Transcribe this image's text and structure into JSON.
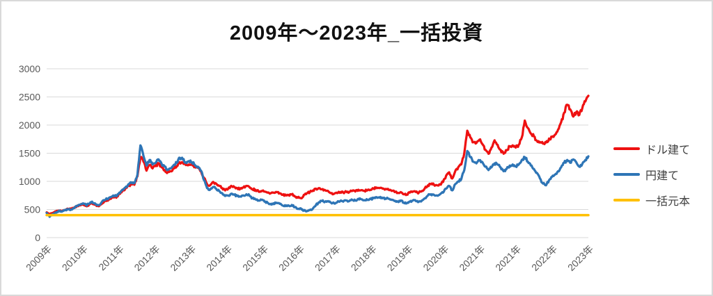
{
  "chart_data": {
    "type": "line",
    "title": "2009年～2023年_一括投資",
    "x_unit": "month",
    "x_tick_labels": [
      "2009年",
      "2010年",
      "2011年",
      "2012年",
      "2013年",
      "2014年",
      "2015年",
      "2016年",
      "2017年",
      "2018年",
      "2019年",
      "2020年",
      "2021年",
      "2021年",
      "2022年",
      "2023年"
    ],
    "y_tick_labels": [
      "0",
      "500",
      "1000",
      "1500",
      "2000",
      "2500",
      "3000"
    ],
    "ylim": [
      0,
      3000
    ],
    "y_step": 500,
    "grid": "horizontal",
    "legend_position": "right",
    "colors": {
      "gridline": "#D9D9D9",
      "axis_text": "#595959",
      "legend_text": "#404040",
      "border": "#D9D9D9"
    },
    "series": [
      {
        "name": "ドル建て",
        "color": "#EE1111",
        "values": [
          450,
          415,
          435,
          460,
          480,
          465,
          490,
          515,
          505,
          530,
          555,
          575,
          595,
          565,
          580,
          615,
          585,
          560,
          590,
          640,
          665,
          695,
          720,
          710,
          780,
          830,
          870,
          920,
          950,
          940,
          1090,
          1430,
          1350,
          1190,
          1290,
          1230,
          1270,
          1320,
          1250,
          1200,
          1160,
          1180,
          1230,
          1270,
          1340,
          1330,
          1290,
          1300,
          1310,
          1260,
          1240,
          1180,
          1060,
          950,
          930,
          990,
          960,
          920,
          880,
          840,
          870,
          920,
          900,
          880,
          870,
          890,
          920,
          900,
          860,
          850,
          820,
          830,
          820,
          800,
          790,
          800,
          810,
          790,
          760,
          750,
          760,
          770,
          730,
          710,
          700,
          760,
          790,
          810,
          840,
          870,
          880,
          860,
          845,
          830,
          790,
          780,
          790,
          810,
          800,
          820,
          810,
          830,
          820,
          850,
          845,
          830,
          840,
          850,
          870,
          890,
          880,
          870,
          865,
          850,
          830,
          810,
          795,
          810,
          770,
          765,
          800,
          820,
          810,
          800,
          830,
          880,
          930,
          950,
          940,
          930,
          950,
          990,
          1100,
          1160,
          1050,
          1180,
          1250,
          1300,
          1500,
          1900,
          1780,
          1700,
          1680,
          1740,
          1660,
          1560,
          1490,
          1600,
          1730,
          1650,
          1560,
          1490,
          1550,
          1620,
          1640,
          1600,
          1650,
          1780,
          2080,
          1950,
          1850,
          1800,
          1720,
          1700,
          1670,
          1690,
          1760,
          1790,
          1830,
          1920,
          2050,
          2220,
          2360,
          2280,
          2150,
          2230,
          2180,
          2300,
          2420,
          2520
        ]
      },
      {
        "name": "円建て",
        "color": "#2E75B6",
        "values": [
          440,
          370,
          420,
          450,
          475,
          460,
          485,
          500,
          495,
          525,
          560,
          585,
          610,
          580,
          600,
          640,
          610,
          580,
          615,
          665,
          690,
          720,
          750,
          735,
          800,
          850,
          890,
          950,
          980,
          970,
          1120,
          1640,
          1450,
          1280,
          1380,
          1300,
          1330,
          1390,
          1310,
          1260,
          1210,
          1230,
          1290,
          1330,
          1420,
          1390,
          1340,
          1360,
          1340,
          1290,
          1260,
          1190,
          1020,
          880,
          850,
          900,
          870,
          830,
          790,
          740,
          750,
          780,
          760,
          740,
          730,
          750,
          770,
          750,
          700,
          680,
          660,
          670,
          640,
          620,
          600,
          610,
          620,
          600,
          570,
          560,
          570,
          580,
          540,
          510,
          520,
          480,
          470,
          490,
          520,
          580,
          630,
          650,
          640,
          650,
          620,
          610,
          630,
          650,
          640,
          660,
          650,
          670,
          660,
          690,
          680,
          665,
          670,
          685,
          700,
          720,
          710,
          700,
          695,
          690,
          670,
          650,
          640,
          660,
          620,
          610,
          640,
          660,
          650,
          640,
          660,
          700,
          750,
          770,
          760,
          750,
          770,
          800,
          870,
          920,
          840,
          950,
          1000,
          1040,
          1200,
          1540,
          1430,
          1350,
          1320,
          1370,
          1340,
          1260,
          1200,
          1250,
          1320,
          1300,
          1250,
          1180,
          1220,
          1280,
          1300,
          1270,
          1300,
          1380,
          1430,
          1350,
          1280,
          1220,
          1150,
          1050,
          960,
          930,
          1020,
          1080,
          1120,
          1180,
          1250,
          1330,
          1380,
          1330,
          1390,
          1340,
          1260,
          1310,
          1380,
          1445
        ]
      },
      {
        "name": "一括元本",
        "color": "#FFC000",
        "type": "constant",
        "value": 400
      }
    ]
  }
}
